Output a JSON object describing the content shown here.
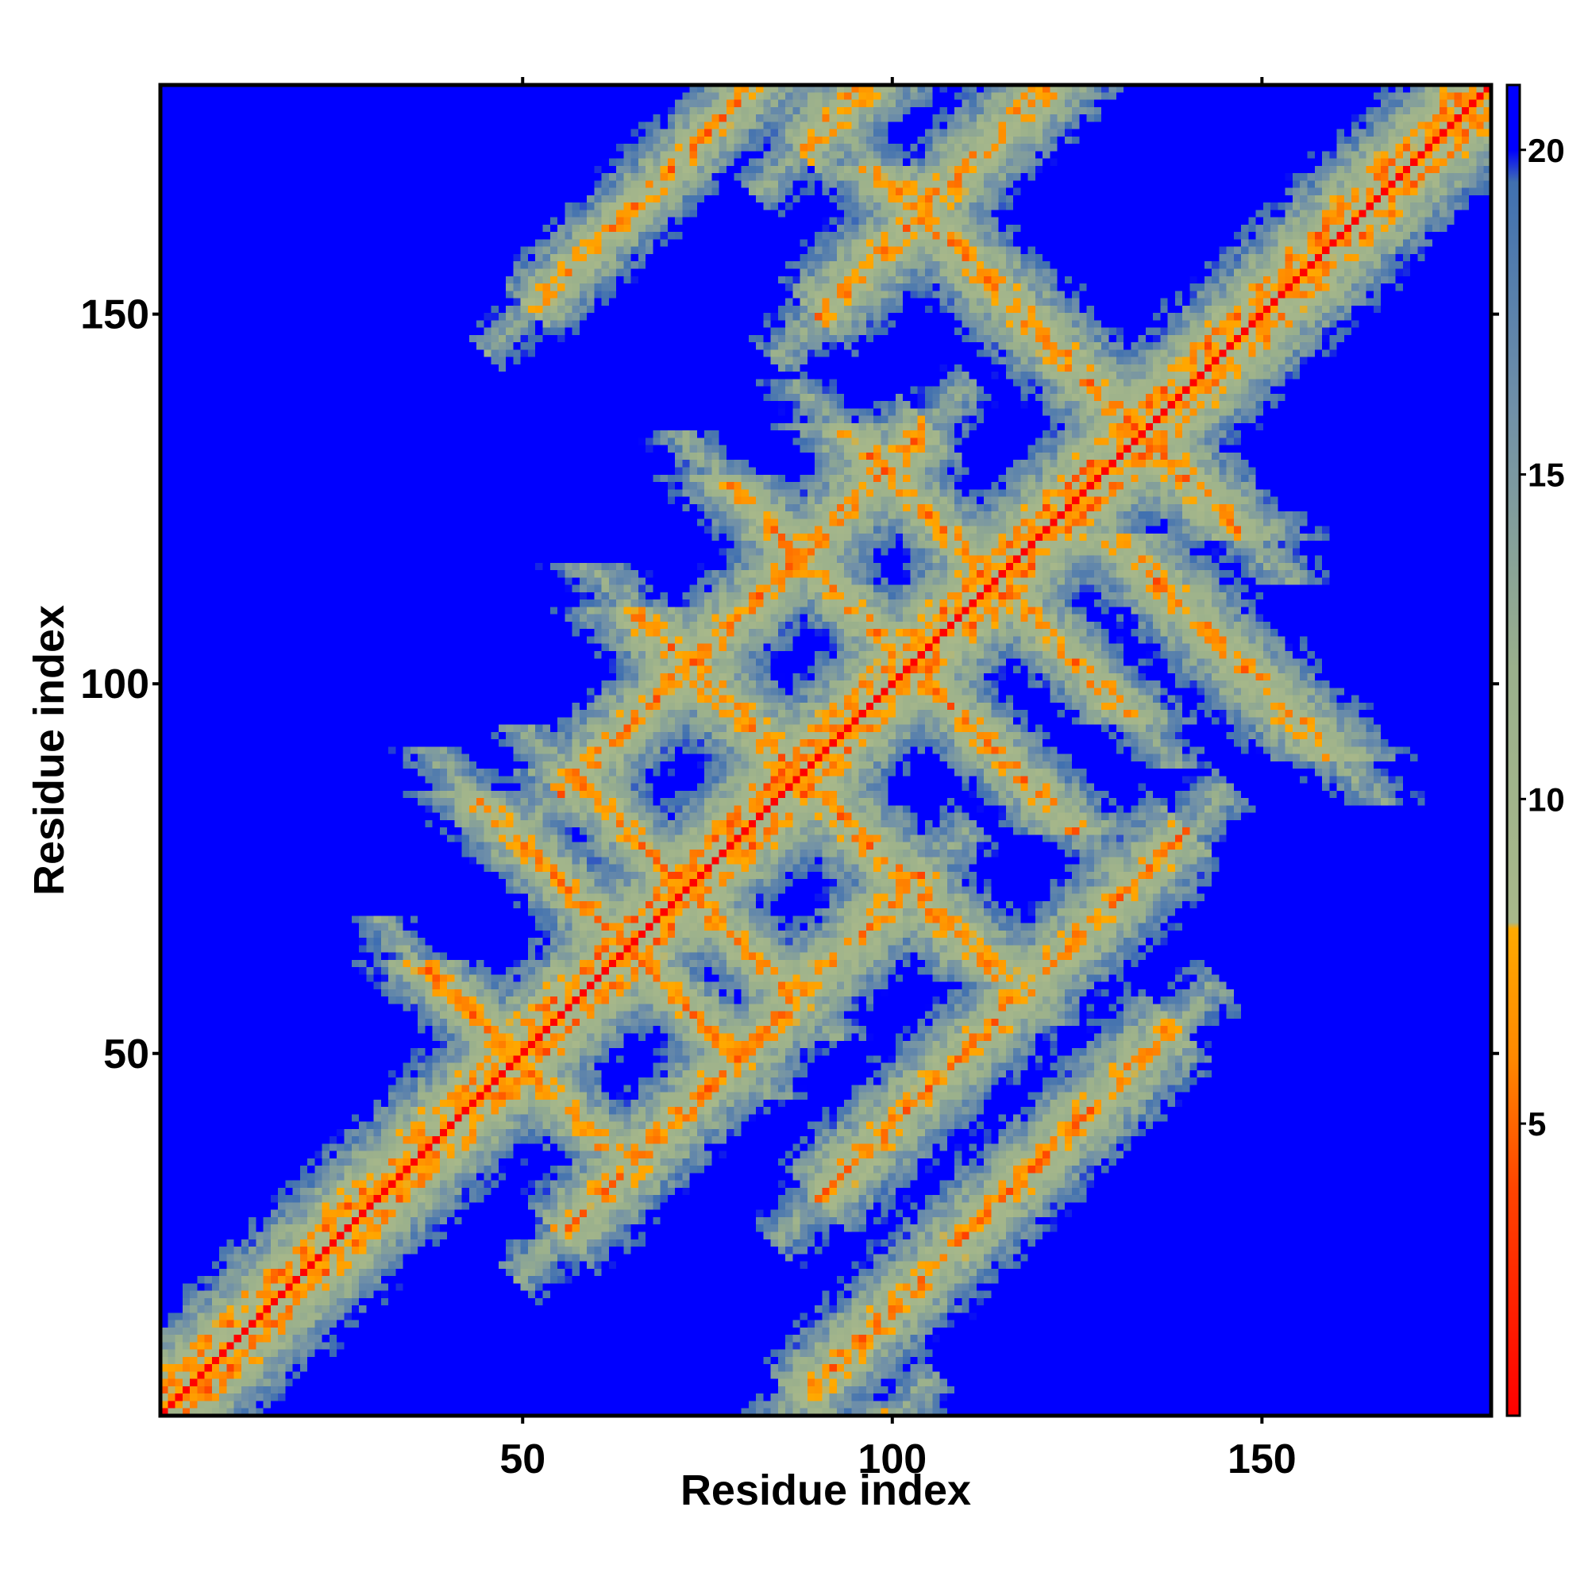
{
  "chart_data": {
    "type": "heatmap",
    "title": "",
    "xlabel": "Residue index",
    "ylabel": "Residue index",
    "xlim": [
      1,
      181
    ],
    "ylim": [
      1,
      181
    ],
    "x_ticks": [
      50,
      100,
      150
    ],
    "y_ticks": [
      50,
      100,
      150
    ],
    "x_tick_labels": [
      "50",
      "100",
      "150"
    ],
    "y_tick_labels": [
      "50",
      "100",
      "150"
    ],
    "n_residues": 181,
    "colorbar": {
      "range": [
        0.5,
        21
      ],
      "ticks": [
        5,
        10,
        15,
        20
      ],
      "tick_labels": [
        "5",
        "10",
        "15",
        "20"
      ],
      "stops": [
        {
          "value": 0.5,
          "color": "#ff0000"
        },
        {
          "value": 4.0,
          "color": "#ff4400"
        },
        {
          "value": 6.0,
          "color": "#ff8800"
        },
        {
          "value": 8.0,
          "color": "#ffaa00"
        },
        {
          "value": 8.1,
          "color": "#a8b88a"
        },
        {
          "value": 12.0,
          "color": "#9ab08c"
        },
        {
          "value": 16.0,
          "color": "#7090a8"
        },
        {
          "value": 19.5,
          "color": "#4070b0"
        },
        {
          "value": 20.0,
          "color": "#0000ff"
        },
        {
          "value": 21.0,
          "color": "#0000ff"
        }
      ]
    },
    "background_color": "#0000ff",
    "contact_bands": [
      {
        "kind": "diagonal",
        "offset": 0,
        "from": 1,
        "to": 181,
        "width": 2.2
      },
      {
        "kind": "diagonal",
        "offset": 3,
        "from": 1,
        "to": 181,
        "width": 3.0
      },
      {
        "kind": "diagonal",
        "offset": -3,
        "from": 1,
        "to": 181,
        "width": 3.0
      },
      {
        "kind": "anti",
        "sum": 98,
        "from": 37,
        "to": 62,
        "width": 2.5
      },
      {
        "kind": "anti",
        "sum": 128,
        "from": 50,
        "to": 85,
        "width": 2.5
      },
      {
        "kind": "anti",
        "sum": 144,
        "from": 58,
        "to": 88,
        "width": 2.5
      },
      {
        "kind": "anti",
        "sum": 205,
        "from": 80,
        "to": 128,
        "width": 2.5
      },
      {
        "kind": "anti",
        "sum": 228,
        "from": 95,
        "to": 135,
        "width": 2.5
      },
      {
        "kind": "diagonal",
        "offset": 100,
        "from": 1,
        "to": 50,
        "width": 2.5
      },
      {
        "kind": "diagonal",
        "offset": -100,
        "from": 101,
        "to": 181,
        "width": 2.5
      },
      {
        "kind": "diagonal",
        "offset": 30,
        "from": 40,
        "to": 90,
        "width": 3.0
      },
      {
        "kind": "diagonal",
        "offset": -30,
        "from": 70,
        "to": 120,
        "width": 3.0
      },
      {
        "kind": "diagonal",
        "offset": 60,
        "from": 60,
        "to": 110,
        "width": 3.0
      },
      {
        "kind": "diagonal",
        "offset": -60,
        "from": 120,
        "to": 170,
        "width": 3.0
      },
      {
        "kind": "diagonal",
        "offset": -85,
        "from": 130,
        "to": 181,
        "width": 3.0
      },
      {
        "kind": "diagonal",
        "offset": 85,
        "from": 45,
        "to": 96,
        "width": 3.0
      },
      {
        "kind": "anti",
        "sum": 268,
        "from": 120,
        "to": 170,
        "width": 3.0
      },
      {
        "kind": "anti",
        "sum": 250,
        "from": 90,
        "to": 120,
        "width": 3.0
      },
      {
        "kind": "anti",
        "sum": 175,
        "from": 60,
        "to": 110,
        "width": 3.0
      }
    ]
  }
}
